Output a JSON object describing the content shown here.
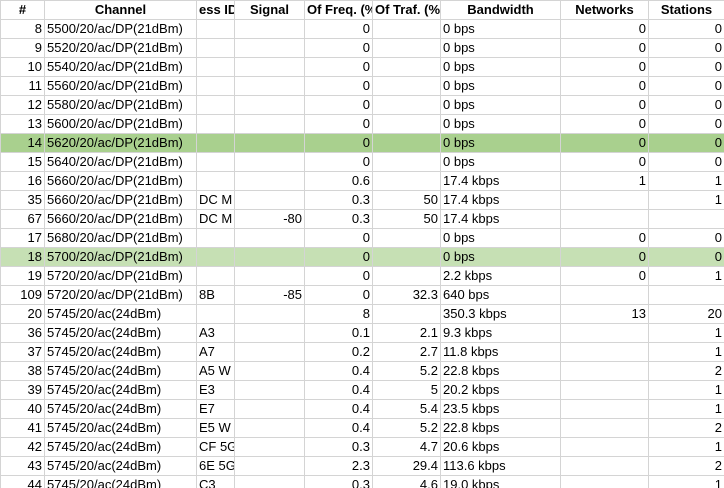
{
  "columns": [
    "#",
    "Channel",
    "ess ID",
    "Signal",
    "Of Freq. (%",
    "Of Traf. (%]",
    "Bandwidth",
    "Networks",
    "Stations"
  ],
  "rows": [
    {
      "id": "8",
      "channel": "5500/20/ac/DP(21dBm)",
      "ess": "",
      "signal": "",
      "freq": "0",
      "traf": "",
      "bw": "0 bps",
      "net": "0",
      "sta": "0",
      "hl": ""
    },
    {
      "id": "9",
      "channel": "5520/20/ac/DP(21dBm)",
      "ess": "",
      "signal": "",
      "freq": "0",
      "traf": "",
      "bw": "0 bps",
      "net": "0",
      "sta": "0",
      "hl": ""
    },
    {
      "id": "10",
      "channel": "5540/20/ac/DP(21dBm)",
      "ess": "",
      "signal": "",
      "freq": "0",
      "traf": "",
      "bw": "0 bps",
      "net": "0",
      "sta": "0",
      "hl": ""
    },
    {
      "id": "11",
      "channel": "5560/20/ac/DP(21dBm)",
      "ess": "",
      "signal": "",
      "freq": "0",
      "traf": "",
      "bw": "0 bps",
      "net": "0",
      "sta": "0",
      "hl": ""
    },
    {
      "id": "12",
      "channel": "5580/20/ac/DP(21dBm)",
      "ess": "",
      "signal": "",
      "freq": "0",
      "traf": "",
      "bw": "0 bps",
      "net": "0",
      "sta": "0",
      "hl": ""
    },
    {
      "id": "13",
      "channel": "5600/20/ac/DP(21dBm)",
      "ess": "",
      "signal": "",
      "freq": "0",
      "traf": "",
      "bw": "0 bps",
      "net": "0",
      "sta": "0",
      "hl": ""
    },
    {
      "id": "14",
      "channel": "5620/20/ac/DP(21dBm)",
      "ess": "",
      "signal": "",
      "freq": "0",
      "traf": "",
      "bw": "0 bps",
      "net": "0",
      "sta": "0",
      "hl": "dark"
    },
    {
      "id": "15",
      "channel": "5640/20/ac/DP(21dBm)",
      "ess": "",
      "signal": "",
      "freq": "0",
      "traf": "",
      "bw": "0 bps",
      "net": "0",
      "sta": "0",
      "hl": ""
    },
    {
      "id": "16",
      "channel": "5660/20/ac/DP(21dBm)",
      "ess": "",
      "signal": "",
      "freq": "0.6",
      "traf": "",
      "bw": "17.4 kbps",
      "net": "1",
      "sta": "1",
      "hl": ""
    },
    {
      "id": "35",
      "channel": "5660/20/ac/DP(21dBm)",
      "ess": "DC M",
      "signal": "",
      "freq": "0.3",
      "traf": "50",
      "bw": "17.4 kbps",
      "net": "",
      "sta": "1",
      "hl": ""
    },
    {
      "id": "67",
      "channel": "5660/20/ac/DP(21dBm)",
      "ess": "DC M",
      "signal": "-80",
      "freq": "0.3",
      "traf": "50",
      "bw": "17.4 kbps",
      "net": "",
      "sta": "",
      "hl": ""
    },
    {
      "id": "17",
      "channel": "5680/20/ac/DP(21dBm)",
      "ess": "",
      "signal": "",
      "freq": "0",
      "traf": "",
      "bw": "0 bps",
      "net": "0",
      "sta": "0",
      "hl": ""
    },
    {
      "id": "18",
      "channel": "5700/20/ac/DP(21dBm)",
      "ess": "",
      "signal": "",
      "freq": "0",
      "traf": "",
      "bw": "0 bps",
      "net": "0",
      "sta": "0",
      "hl": "light"
    },
    {
      "id": "19",
      "channel": "5720/20/ac/DP(21dBm)",
      "ess": "",
      "signal": "",
      "freq": "0",
      "traf": "",
      "bw": "2.2 kbps",
      "net": "0",
      "sta": "1",
      "hl": ""
    },
    {
      "id": "109",
      "channel": "5720/20/ac/DP(21dBm)",
      "ess": "8B",
      "signal": "-85",
      "freq": "0",
      "traf": "32.3",
      "bw": "640 bps",
      "net": "",
      "sta": "",
      "hl": ""
    },
    {
      "id": "20",
      "channel": "5745/20/ac(24dBm)",
      "ess": "",
      "signal": "",
      "freq": "8",
      "traf": "",
      "bw": "350.3 kbps",
      "net": "13",
      "sta": "20",
      "hl": ""
    },
    {
      "id": "36",
      "channel": "5745/20/ac(24dBm)",
      "ess": "A3",
      "signal": "",
      "freq": "0.1",
      "traf": "2.1",
      "bw": "9.3 kbps",
      "net": "",
      "sta": "1",
      "hl": ""
    },
    {
      "id": "37",
      "channel": "5745/20/ac(24dBm)",
      "ess": "A7",
      "signal": "",
      "freq": "0.2",
      "traf": "2.7",
      "bw": "11.8 kbps",
      "net": "",
      "sta": "1",
      "hl": ""
    },
    {
      "id": "38",
      "channel": "5745/20/ac(24dBm)",
      "ess": "A5 W",
      "signal": "",
      "freq": "0.4",
      "traf": "5.2",
      "bw": "22.8 kbps",
      "net": "",
      "sta": "2",
      "hl": ""
    },
    {
      "id": "39",
      "channel": "5745/20/ac(24dBm)",
      "ess": "E3",
      "signal": "",
      "freq": "0.4",
      "traf": "5",
      "bw": "20.2 kbps",
      "net": "",
      "sta": "1",
      "hl": ""
    },
    {
      "id": "40",
      "channel": "5745/20/ac(24dBm)",
      "ess": "E7",
      "signal": "",
      "freq": "0.4",
      "traf": "5.4",
      "bw": "23.5 kbps",
      "net": "",
      "sta": "1",
      "hl": ""
    },
    {
      "id": "41",
      "channel": "5745/20/ac(24dBm)",
      "ess": "E5 W",
      "signal": "",
      "freq": "0.4",
      "traf": "5.2",
      "bw": "22.8 kbps",
      "net": "",
      "sta": "2",
      "hl": ""
    },
    {
      "id": "42",
      "channel": "5745/20/ac(24dBm)",
      "ess": "CF 5G",
      "signal": "",
      "freq": "0.3",
      "traf": "4.7",
      "bw": "20.6 kbps",
      "net": "",
      "sta": "1",
      "hl": ""
    },
    {
      "id": "43",
      "channel": "5745/20/ac(24dBm)",
      "ess": "6E 5G",
      "signal": "",
      "freq": "2.3",
      "traf": "29.4",
      "bw": "113.6 kbps",
      "net": "",
      "sta": "2",
      "hl": ""
    },
    {
      "id": "44",
      "channel": "5745/20/ac(24dBm)",
      "ess": "C3",
      "signal": "",
      "freq": "0.3",
      "traf": "4.6",
      "bw": "19.0 kbps",
      "net": "",
      "sta": "1",
      "hl": ""
    }
  ]
}
